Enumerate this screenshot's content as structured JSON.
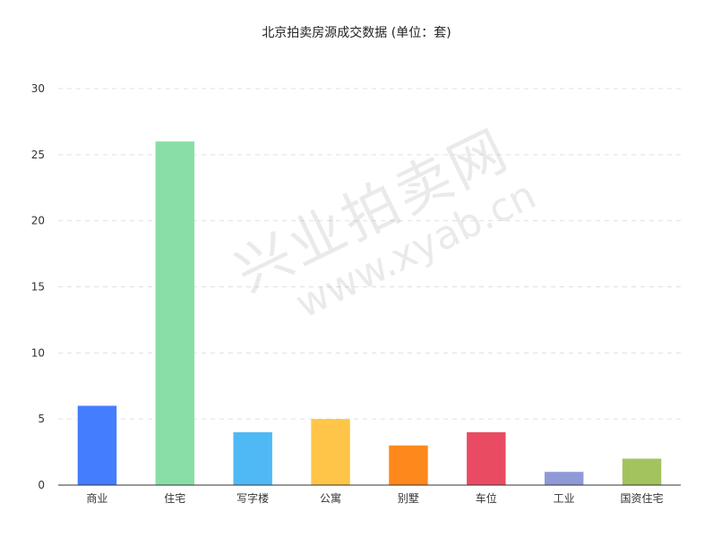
{
  "title": "北京拍卖房源成交数据 (单位：套)",
  "watermark": {
    "line1": "兴业拍卖网",
    "line2": "www.xyab.cn"
  },
  "chart_data": {
    "type": "bar",
    "title": "北京拍卖房源成交数据 (单位：套)",
    "categories": [
      "商业",
      "住宅",
      "写字楼",
      "公寓",
      "别墅",
      "车位",
      "工业",
      "国资住宅"
    ],
    "values": [
      6,
      26,
      4,
      5,
      3,
      4,
      1,
      2
    ],
    "colors": [
      "#447dfe",
      "#89dea7",
      "#4fb9f5",
      "#ffc548",
      "#fd881b",
      "#e94c62",
      "#8e99d7",
      "#a3c35f"
    ],
    "ylim": [
      0,
      30
    ],
    "yticks": [
      0,
      5,
      10,
      15,
      20,
      25,
      30
    ],
    "xlabel": "",
    "ylabel": "",
    "grid": true,
    "legend": "none"
  }
}
